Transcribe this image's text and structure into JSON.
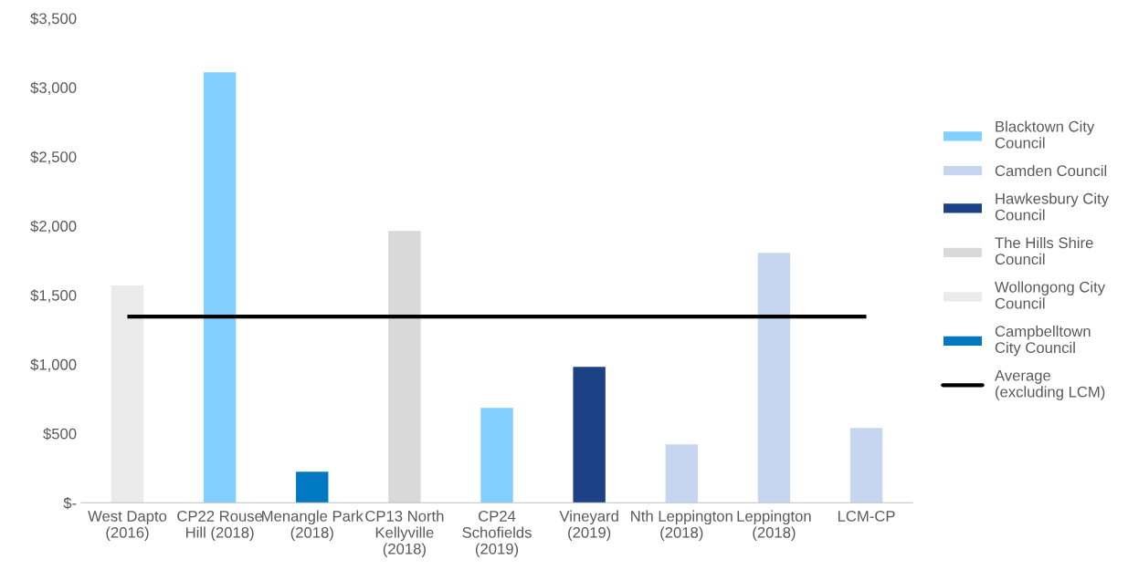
{
  "chart_data": {
    "type": "bar",
    "categories": [
      "West Dapto (2016)",
      "CP22 Rouse Hill (2018)",
      "Menangle Park (2018)",
      "CP13 North Kellyville (2018)",
      "CP24 Schofields (2019)",
      "Vineyard (2019)",
      "Nth Leppington (2018)",
      "Leppington (2018)",
      "LCM-CP"
    ],
    "series": [
      {
        "name": "Blacktown City Council",
        "color": "#80cfff",
        "values": [
          null,
          3110,
          null,
          null,
          685,
          null,
          null,
          null,
          null
        ]
      },
      {
        "name": "Camden Council",
        "color": "#c6d6f0",
        "values": [
          null,
          null,
          null,
          null,
          null,
          null,
          422,
          1806,
          540
        ]
      },
      {
        "name": "Hawkesbury City Council",
        "color": "#1d4185",
        "values": [
          null,
          null,
          null,
          null,
          null,
          982,
          null,
          null,
          null
        ]
      },
      {
        "name": "The Hills Shire Council",
        "color": "#d9d9d9",
        "values": [
          null,
          null,
          null,
          1964,
          null,
          null,
          null,
          null,
          null
        ]
      },
      {
        "name": "Wollongong City Council",
        "color": "#ebebeb",
        "values": [
          1570,
          null,
          null,
          null,
          null,
          null,
          null,
          null,
          null
        ]
      },
      {
        "name": "Campbelltown City Council",
        "color": "#0079c2",
        "values": [
          null,
          null,
          224,
          null,
          null,
          null,
          null,
          null,
          null
        ]
      },
      {
        "name": "Average (excluding LCM)",
        "type": "line",
        "color": "#000000",
        "values": [
          1345,
          1345,
          1345,
          1345,
          1345,
          1345,
          1345,
          1345,
          1345
        ]
      }
    ],
    "ylim": [
      0,
      3500
    ],
    "yticks": [
      {
        "value": 0,
        "label": "$-"
      },
      {
        "value": 500,
        "label": "$500"
      },
      {
        "value": 1000,
        "label": "$1,000"
      },
      {
        "value": 1500,
        "label": "$1,500"
      },
      {
        "value": 2000,
        "label": "$2,000"
      },
      {
        "value": 2500,
        "label": "$2,500"
      },
      {
        "value": 3000,
        "label": "$3,000"
      },
      {
        "value": 3500,
        "label": "$3,500"
      }
    ],
    "grid": false,
    "legend": "right"
  }
}
